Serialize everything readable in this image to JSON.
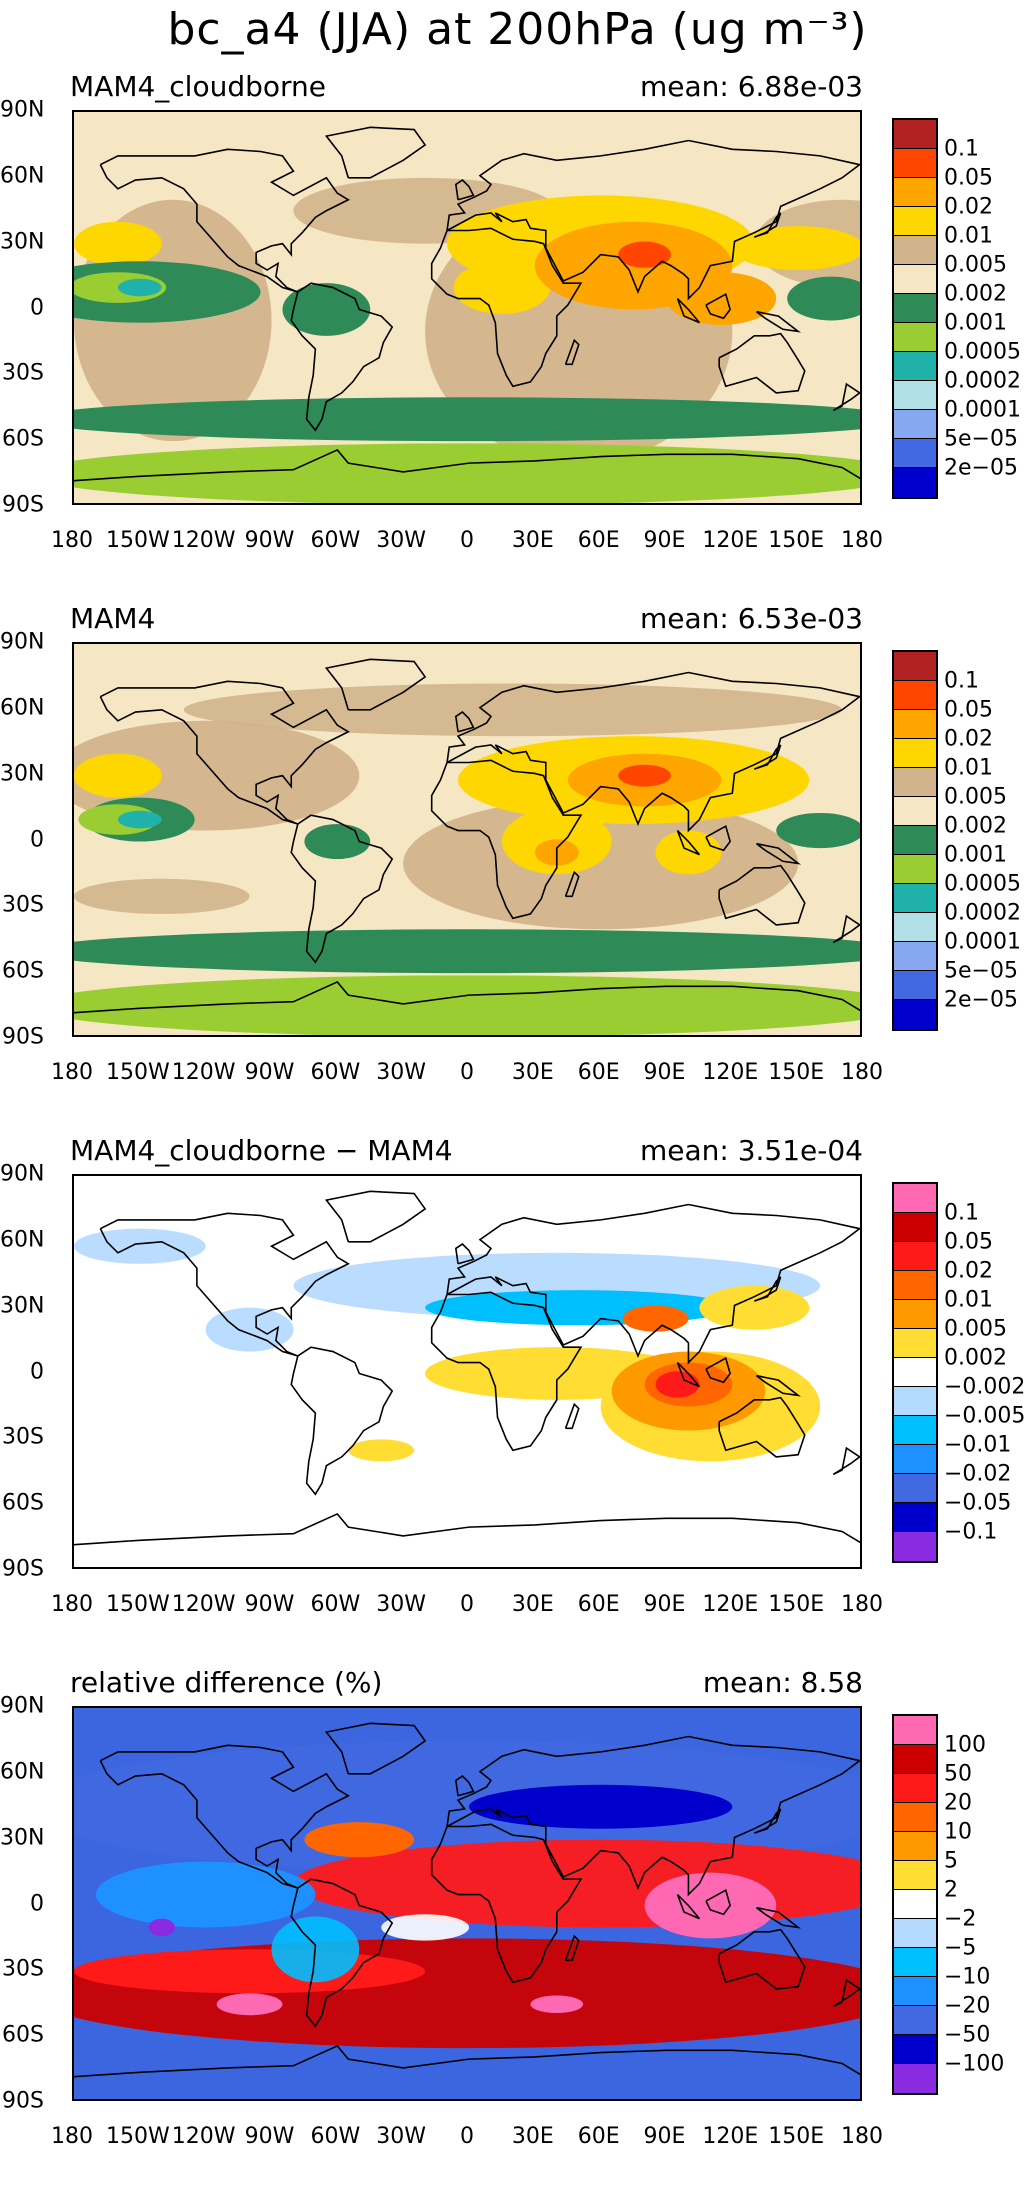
{
  "main_title": "bc_a4 (JJA) at 200hPa (ug m⁻³)",
  "y_ticks": [
    "90N",
    "60N",
    "30N",
    "0",
    "30S",
    "60S",
    "90S"
  ],
  "x_ticks": [
    "180",
    "150W",
    "120W",
    "90W",
    "60W",
    "30W",
    "0",
    "30E",
    "60E",
    "90E",
    "120E",
    "150E",
    "180"
  ],
  "panels": [
    {
      "title": "MAM4_cloudborne",
      "mean": "mean:  6.88e-03",
      "background_color": "#f5e6c4",
      "colorbar_colors": [
        "#b22222",
        "#ff4500",
        "#ffa500",
        "#ffd700",
        "#d2b48c",
        "#f5e6c4",
        "#2e8b57",
        "#9acd32",
        "#20b2aa",
        "#b0e0e6",
        "#87a8f0",
        "#4169e1",
        "#0000cd"
      ],
      "colorbar_labels": [
        "0.1",
        "0.05",
        "0.02",
        "0.01",
        "0.005",
        "0.002",
        "0.001",
        "0.0005",
        "0.0002",
        "0.0001",
        "5e−05",
        "2e−05"
      ]
    },
    {
      "title": "MAM4",
      "mean": "mean:  6.53e-03",
      "background_color": "#f5e6c4",
      "colorbar_colors": [
        "#b22222",
        "#ff4500",
        "#ffa500",
        "#ffd700",
        "#d2b48c",
        "#f5e6c4",
        "#2e8b57",
        "#9acd32",
        "#20b2aa",
        "#b0e0e6",
        "#87a8f0",
        "#4169e1",
        "#0000cd"
      ],
      "colorbar_labels": [
        "0.1",
        "0.05",
        "0.02",
        "0.01",
        "0.005",
        "0.002",
        "0.001",
        "0.0005",
        "0.0002",
        "0.0001",
        "5e−05",
        "2e−05"
      ]
    },
    {
      "title": "MAM4_cloudborne − MAM4",
      "mean": "mean:  3.51e-04",
      "background_color": "#ffffff",
      "colorbar_colors": [
        "#ff69b4",
        "#cc0000",
        "#ff1a1a",
        "#ff6600",
        "#ff9900",
        "#ffdd33",
        "#ffffff",
        "#b3d9ff",
        "#00bfff",
        "#1e90ff",
        "#4169e1",
        "#0000cd",
        "#8a2be2"
      ],
      "colorbar_labels": [
        "0.1",
        "0.05",
        "0.02",
        "0.01",
        "0.005",
        "0.002",
        "−0.002",
        "−0.005",
        "−0.01",
        "−0.02",
        "−0.05",
        "−0.1"
      ]
    },
    {
      "title": "relative difference (%)",
      "mean": "mean:   8.58",
      "background_color": "#3b66e0",
      "colorbar_colors": [
        "#ff69b4",
        "#cc0000",
        "#ff1a1a",
        "#ff6600",
        "#ff9900",
        "#ffdd33",
        "#ffffff",
        "#b3d9ff",
        "#00bfff",
        "#1e90ff",
        "#4169e1",
        "#0000cd",
        "#8a2be2"
      ],
      "colorbar_labels": [
        "100",
        "50",
        "20",
        "10",
        "5",
        "2",
        "−2",
        "−5",
        "−10",
        "−20",
        "−50",
        "−100"
      ]
    }
  ]
}
